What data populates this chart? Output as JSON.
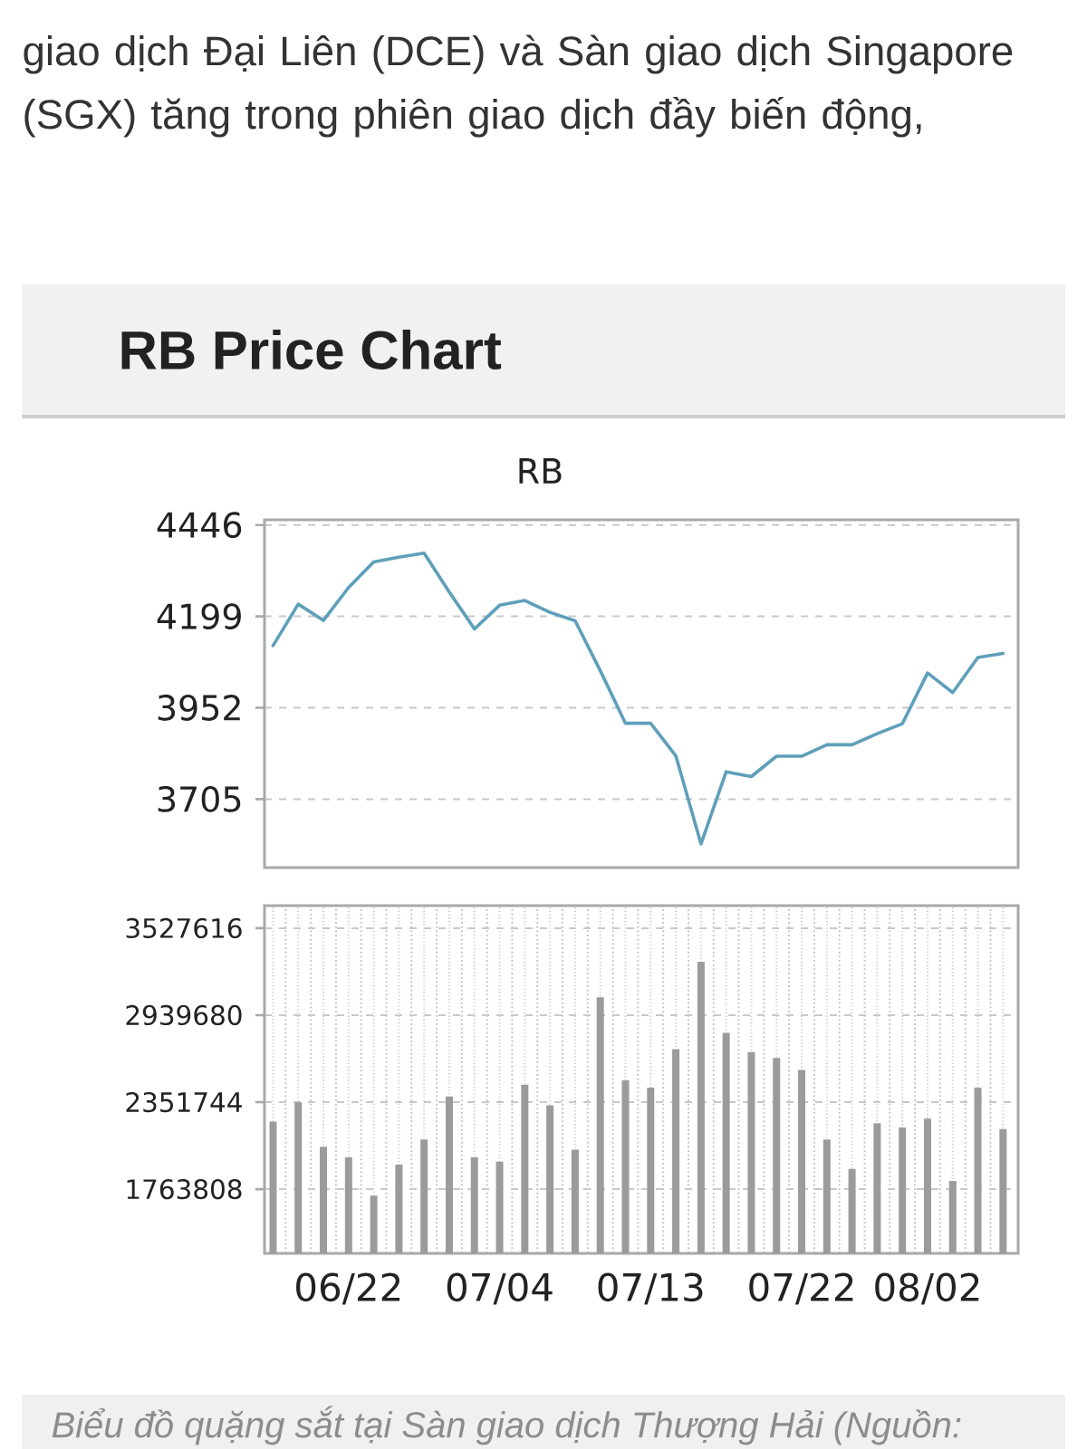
{
  "chart_data": [
    {
      "type": "line",
      "title": "RB Price Chart",
      "subtitle": "RB",
      "annotations": [
        "giao dịch Đại Liên (DCE) và Sàn giao dịch Singapore (SGX) tăng trong phiên giao dịch đầy biến động,"
      ],
      "categories": [
        null,
        null,
        null,
        null,
        null,
        null,
        null,
        null,
        null,
        null,
        null,
        null,
        null,
        null,
        null,
        null,
        null,
        null,
        null,
        null,
        null,
        null,
        null,
        null,
        null,
        null,
        null,
        null,
        null,
        null
      ],
      "values": [
        4120,
        4232,
        4188,
        4277,
        4346,
        4359,
        4370,
        4265,
        4165,
        4229,
        4242,
        4210,
        4187,
        4052,
        3910,
        3910,
        3822,
        3584,
        3779,
        3766,
        3821,
        3821,
        3852,
        3852,
        3882,
        3909,
        4046,
        3993,
        4088,
        4099
      ],
      "color": "#5e9fba",
      "ylim": [
        3520,
        4460
      ],
      "yticks": [
        3705,
        3952,
        4199,
        4446
      ],
      "grid": "y",
      "tick_labels": "y"
    },
    {
      "type": "bar",
      "annotations": [
        "Biểu đồ quặng sắt tại Sàn giao dịch Thượng Hải (Nguồn:"
      ],
      "categories": [
        null,
        null,
        null,
        "06/22",
        null,
        null,
        null,
        null,
        null,
        "07/04",
        null,
        null,
        null,
        null,
        null,
        "07/13",
        null,
        null,
        null,
        null,
        null,
        "07/22",
        null,
        null,
        null,
        null,
        "08/02",
        null,
        null,
        null
      ],
      "values": [
        2220000,
        2350000,
        2050000,
        1980000,
        1720000,
        1930000,
        2100000,
        2390000,
        1980000,
        1950000,
        2470000,
        2330000,
        2030000,
        3060000,
        2500000,
        2450000,
        2710000,
        3300000,
        2820000,
        2690000,
        2650000,
        2570000,
        2100000,
        1900000,
        2210000,
        2180000,
        2240000,
        1820000,
        2450000,
        2170000
      ],
      "color": "#9b9b9b",
      "ylim": [
        1330000,
        3680000
      ],
      "yticks": [
        1763808,
        2351744,
        2939680,
        3527616
      ],
      "grid": true
    }
  ]
}
